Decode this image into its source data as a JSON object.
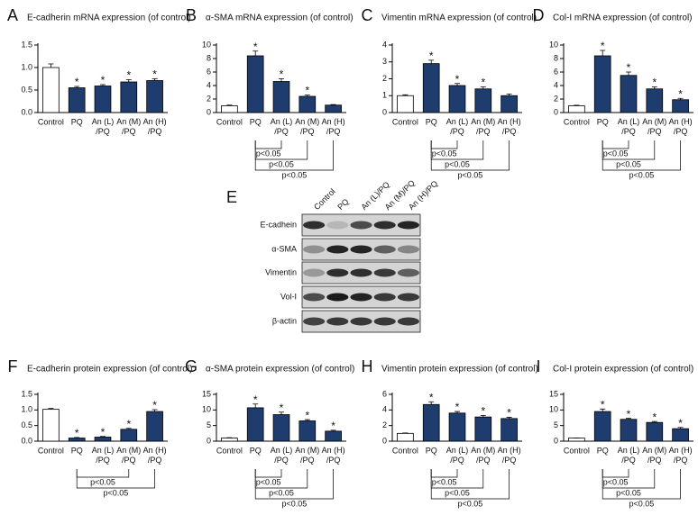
{
  "chart_data": [
    {
      "type": "bar",
      "panel_label": "A",
      "title": "E-cadherin mRNA expression (of control)",
      "categories": [
        "Control",
        "PQ",
        "An (L)\n/PQ",
        "An (M)\n/PQ",
        "An (H)\n/PQ"
      ],
      "values": [
        1.0,
        0.55,
        0.59,
        0.68,
        0.71
      ],
      "errors": [
        0.08,
        0.03,
        0.03,
        0.05,
        0.04
      ],
      "value_markers": [
        null,
        "*",
        "*",
        "*",
        "*"
      ],
      "colors": [
        "#ffffff",
        "#1f3c6e",
        "#1f3c6e",
        "#1f3c6e",
        "#1f3c6e"
      ],
      "ylim": [
        0,
        1.5
      ],
      "yticks": [
        {
          "value": 0,
          "label": "0.0"
        },
        0.5,
        {
          "value": 1,
          "label": "1.0"
        },
        1.5
      ],
      "comparisons": []
    },
    {
      "type": "bar",
      "panel_label": "B",
      "title": "α-SMA mRNA expression (of control)",
      "categories": [
        "Control",
        "PQ",
        "An (L)\n/PQ",
        "An (M)\n/PQ",
        "An (H)\n/PQ"
      ],
      "values": [
        1.0,
        8.4,
        4.6,
        2.4,
        1.1
      ],
      "errors": [
        0.1,
        0.7,
        0.4,
        0.2,
        0.08
      ],
      "value_markers": [
        null,
        "*",
        "*",
        "*",
        null
      ],
      "colors": [
        "#ffffff",
        "#1f3c6e",
        "#1f3c6e",
        "#1f3c6e",
        "#1f3c6e"
      ],
      "ylim": [
        0,
        10
      ],
      "yticks": [
        0,
        2,
        4,
        6,
        8,
        10
      ],
      "comparisons": [
        {
          "from": 1,
          "to": 2,
          "label": "p<0.05"
        },
        {
          "from": 1,
          "to": 3,
          "label": "p<0.05"
        },
        {
          "from": 1,
          "to": 4,
          "label": "p<0.05"
        }
      ]
    },
    {
      "type": "bar",
      "panel_label": "C",
      "title": "Vimentin mRNA expression (of control)",
      "categories": [
        "Control",
        "PQ",
        "An (L)\n/PQ",
        "An (M)\n/PQ",
        "An (H)\n/PQ"
      ],
      "values": [
        1.0,
        2.9,
        1.6,
        1.4,
        1.0
      ],
      "errors": [
        0.05,
        0.2,
        0.12,
        0.12,
        0.1
      ],
      "value_markers": [
        null,
        "*",
        "*",
        "*",
        null
      ],
      "colors": [
        "#ffffff",
        "#1f3c6e",
        "#1f3c6e",
        "#1f3c6e",
        "#1f3c6e"
      ],
      "ylim": [
        0,
        4
      ],
      "yticks": [
        0,
        1,
        2,
        3,
        4
      ],
      "comparisons": [
        {
          "from": 1,
          "to": 2,
          "label": "p<0.05"
        },
        {
          "from": 1,
          "to": 3,
          "label": "p<0.05"
        },
        {
          "from": 1,
          "to": 4,
          "label": "p<0.05"
        }
      ]
    },
    {
      "type": "bar",
      "panel_label": "D",
      "title": "Col-I mRNA expression (of control)",
      "categories": [
        "Control",
        "PQ",
        "An (L)\n/PQ",
        "An (M)\n/PQ",
        "An (H)\n/PQ"
      ],
      "values": [
        1.0,
        8.4,
        5.5,
        3.5,
        1.9
      ],
      "errors": [
        0.08,
        0.8,
        0.5,
        0.3,
        0.2
      ],
      "value_markers": [
        null,
        "*",
        "*",
        "*",
        "*"
      ],
      "colors": [
        "#ffffff",
        "#1f3c6e",
        "#1f3c6e",
        "#1f3c6e",
        "#1f3c6e"
      ],
      "ylim": [
        0,
        10
      ],
      "yticks": [
        0,
        2,
        4,
        6,
        8,
        10
      ],
      "comparisons": [
        {
          "from": 1,
          "to": 2,
          "label": "p<0.05"
        },
        {
          "from": 1,
          "to": 3,
          "label": "p<0.05"
        },
        {
          "from": 1,
          "to": 4,
          "label": "p<0.05"
        }
      ]
    },
    {
      "type": "bar",
      "panel_label": "F",
      "title": "E-cadherin protein expression (of control)",
      "categories": [
        "Control",
        "PQ",
        "An (L)\n/PQ",
        "An (M)\n/PQ",
        "An (H)\n/PQ"
      ],
      "values": [
        1.02,
        0.1,
        0.13,
        0.38,
        0.95
      ],
      "errors": [
        0.03,
        0.02,
        0.02,
        0.03,
        0.06
      ],
      "value_markers": [
        null,
        "*",
        "*",
        "*",
        "*"
      ],
      "colors": [
        "#ffffff",
        "#1f3c6e",
        "#1f3c6e",
        "#1f3c6e",
        "#1f3c6e"
      ],
      "ylim": [
        0,
        1.5
      ],
      "yticks": [
        {
          "value": 0,
          "label": "0.0"
        },
        0.5,
        {
          "value": 1,
          "label": "1.0"
        },
        1.5
      ],
      "comparisons": [
        {
          "from": 1,
          "to": 3,
          "label": "p<0.05"
        },
        {
          "from": 1,
          "to": 4,
          "label": "p<0.05"
        }
      ]
    },
    {
      "type": "bar",
      "panel_label": "G",
      "title": "α-SMA protein expression (of control)",
      "categories": [
        "Control",
        "PQ",
        "An (L)\n/PQ",
        "An (M)\n/PQ",
        "An (H)\n/PQ"
      ],
      "values": [
        1.0,
        10.7,
        8.5,
        6.5,
        3.2
      ],
      "errors": [
        0.1,
        1.2,
        0.8,
        0.4,
        0.3
      ],
      "value_markers": [
        null,
        "*",
        "*",
        "*",
        "*"
      ],
      "colors": [
        "#ffffff",
        "#1f3c6e",
        "#1f3c6e",
        "#1f3c6e",
        "#1f3c6e"
      ],
      "ylim": [
        0,
        15
      ],
      "yticks": [
        0,
        5,
        10,
        15
      ],
      "comparisons": [
        {
          "from": 1,
          "to": 2,
          "label": "p<0.05"
        },
        {
          "from": 1,
          "to": 3,
          "label": "p<0.05"
        },
        {
          "from": 1,
          "to": 4,
          "label": "p<0.05"
        }
      ]
    },
    {
      "type": "bar",
      "panel_label": "H",
      "title": "Vimentin protein expression (of control)",
      "categories": [
        "Control",
        "PQ",
        "An (L)\n/PQ",
        "An (M)\n/PQ",
        "An (H)\n/PQ"
      ],
      "values": [
        1.0,
        4.7,
        3.6,
        3.1,
        2.9
      ],
      "errors": [
        0.05,
        0.35,
        0.2,
        0.2,
        0.15
      ],
      "value_markers": [
        null,
        "*",
        "*",
        "*",
        "*"
      ],
      "colors": [
        "#ffffff",
        "#1f3c6e",
        "#1f3c6e",
        "#1f3c6e",
        "#1f3c6e"
      ],
      "ylim": [
        0,
        6
      ],
      "yticks": [
        0,
        2,
        4,
        6
      ],
      "comparisons": [
        {
          "from": 1,
          "to": 2,
          "label": "p<0.05"
        },
        {
          "from": 1,
          "to": 3,
          "label": "p<0.05"
        },
        {
          "from": 1,
          "to": 4,
          "label": "p<0.05"
        }
      ]
    },
    {
      "type": "bar",
      "panel_label": "I",
      "title": "Col-I protein expression (of control)",
      "categories": [
        "Control",
        "PQ",
        "An (L)\n/PQ",
        "An (M)\n/PQ",
        "An (H)\n/PQ"
      ],
      "values": [
        1.0,
        9.5,
        7.0,
        6.0,
        4.0
      ],
      "errors": [
        0.05,
        0.8,
        0.3,
        0.3,
        0.4
      ],
      "value_markers": [
        null,
        "*",
        "*",
        "*",
        "*"
      ],
      "colors": [
        "#ffffff",
        "#1f3c6e",
        "#1f3c6e",
        "#1f3c6e",
        "#1f3c6e"
      ],
      "ylim": [
        0,
        15
      ],
      "yticks": [
        0,
        5,
        10,
        15
      ],
      "comparisons": [
        {
          "from": 1,
          "to": 2,
          "label": "p<0.05"
        },
        {
          "from": 1,
          "to": 3,
          "label": "p<0.05"
        },
        {
          "from": 1,
          "to": 4,
          "label": "p<0.05"
        }
      ]
    }
  ],
  "blot": {
    "panel_label": "E",
    "columns": [
      "Control",
      "PQ",
      "An (L)/PQ",
      "An (M)/PQ",
      "An (H)/PQ"
    ],
    "rows": [
      "E-cadhein",
      "α-SMA",
      "Vimentin",
      "Vol-I",
      "β-actin"
    ]
  }
}
